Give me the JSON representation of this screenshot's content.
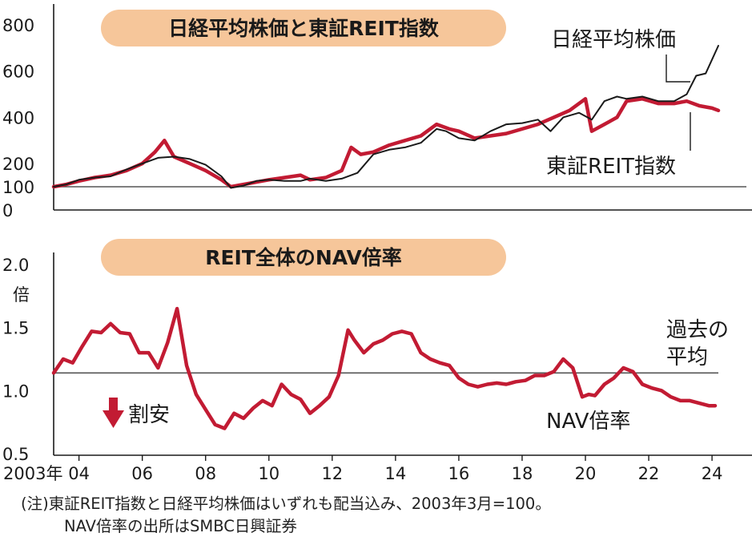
{
  "chart_data": [
    {
      "type": "line",
      "title": "日経平均株価と東証REIT指数",
      "ylim": [
        0,
        800
      ],
      "yticks": [
        "0",
        "100",
        "200",
        "400",
        "600",
        "800"
      ],
      "reference_line": 100,
      "series": [
        {
          "name": "日経平均株価",
          "color": "#1a1a1a",
          "x": [
            2003.2,
            2003.6,
            2004.0,
            2004.5,
            2005.0,
            2005.5,
            2006.0,
            2006.5,
            2007.0,
            2007.5,
            2008.0,
            2008.5,
            2008.8,
            2009.2,
            2009.6,
            2010.0,
            2010.5,
            2011.0,
            2011.3,
            2011.8,
            2012.3,
            2012.8,
            2013.3,
            2013.8,
            2014.3,
            2014.8,
            2015.3,
            2015.6,
            2016.0,
            2016.5,
            2017.0,
            2017.5,
            2018.0,
            2018.5,
            2018.9,
            2019.3,
            2019.8,
            2020.2,
            2020.6,
            2021.0,
            2021.3,
            2021.8,
            2022.3,
            2022.8,
            2023.2,
            2023.5,
            2023.8,
            2024.0,
            2024.2
          ],
          "values": [
            100,
            110,
            130,
            140,
            145,
            175,
            200,
            225,
            230,
            220,
            195,
            145,
            95,
            105,
            125,
            130,
            125,
            125,
            135,
            125,
            135,
            160,
            240,
            260,
            270,
            290,
            350,
            340,
            310,
            300,
            340,
            370,
            375,
            390,
            340,
            400,
            420,
            390,
            470,
            490,
            480,
            490,
            470,
            470,
            500,
            580,
            590,
            650,
            710
          ]
        },
        {
          "name": "東証REIT指数",
          "color": "#c21b33",
          "x": [
            2003.2,
            2003.6,
            2004.0,
            2004.5,
            2005.0,
            2005.5,
            2006.0,
            2006.4,
            2006.7,
            2007.0,
            2007.5,
            2008.0,
            2008.5,
            2008.8,
            2009.2,
            2009.6,
            2010.0,
            2010.5,
            2011.0,
            2011.3,
            2011.8,
            2012.3,
            2012.6,
            2012.9,
            2013.3,
            2013.8,
            2014.3,
            2014.8,
            2015.3,
            2015.7,
            2016.0,
            2016.5,
            2017.0,
            2017.5,
            2018.0,
            2018.5,
            2019.0,
            2019.5,
            2020.0,
            2020.2,
            2020.6,
            2021.0,
            2021.3,
            2021.8,
            2022.3,
            2022.8,
            2023.2,
            2023.6,
            2024.0,
            2024.2
          ],
          "values": [
            100,
            110,
            125,
            140,
            150,
            170,
            200,
            250,
            300,
            230,
            200,
            170,
            130,
            100,
            110,
            120,
            130,
            140,
            150,
            130,
            140,
            170,
            270,
            240,
            250,
            280,
            300,
            320,
            370,
            350,
            340,
            310,
            320,
            330,
            350,
            370,
            400,
            430,
            480,
            340,
            370,
            400,
            470,
            480,
            460,
            460,
            470,
            450,
            440,
            430
          ]
        }
      ],
      "annotations": [
        "日経平均株価",
        "東証REIT指数"
      ]
    },
    {
      "type": "line",
      "title": "REIT全体のNAV倍率",
      "ylabel": "倍",
      "ylim": [
        0.5,
        2.0
      ],
      "yticks": [
        "0.5",
        "1.0",
        "1.5",
        "2.0"
      ],
      "xlim": [
        2003.2,
        2024.2
      ],
      "xticks": [
        {
          "value": 2003.2,
          "label": "2003年"
        },
        {
          "value": 2004,
          "label": "04"
        },
        {
          "value": 2006,
          "label": "06"
        },
        {
          "value": 2008,
          "label": "08"
        },
        {
          "value": 2010,
          "label": "10"
        },
        {
          "value": 2012,
          "label": "12"
        },
        {
          "value": 2014,
          "label": "14"
        },
        {
          "value": 2016,
          "label": "16"
        },
        {
          "value": 2018,
          "label": "18"
        },
        {
          "value": 2020,
          "label": "20"
        },
        {
          "value": 2022,
          "label": "22"
        },
        {
          "value": 2024,
          "label": "24"
        }
      ],
      "average_line": 1.14,
      "series": [
        {
          "name": "NAV倍率",
          "color": "#c21b33",
          "x": [
            2003.2,
            2003.5,
            2003.8,
            2004.1,
            2004.4,
            2004.7,
            2005.0,
            2005.3,
            2005.6,
            2005.9,
            2006.2,
            2006.5,
            2006.8,
            2007.1,
            2007.4,
            2007.7,
            2008.0,
            2008.3,
            2008.6,
            2008.9,
            2009.2,
            2009.5,
            2009.8,
            2010.1,
            2010.4,
            2010.7,
            2011.0,
            2011.3,
            2011.6,
            2011.9,
            2012.2,
            2012.5,
            2012.7,
            2013.0,
            2013.3,
            2013.6,
            2013.9,
            2014.2,
            2014.5,
            2014.8,
            2015.1,
            2015.4,
            2015.7,
            2016.0,
            2016.3,
            2016.6,
            2016.9,
            2017.2,
            2017.5,
            2017.8,
            2018.1,
            2018.4,
            2018.7,
            2019.0,
            2019.3,
            2019.6,
            2019.9,
            2020.1,
            2020.3,
            2020.6,
            2020.9,
            2021.2,
            2021.5,
            2021.8,
            2022.1,
            2022.4,
            2022.7,
            2023.0,
            2023.3,
            2023.6,
            2023.9,
            2024.1
          ],
          "values": [
            1.14,
            1.25,
            1.22,
            1.35,
            1.47,
            1.46,
            1.53,
            1.46,
            1.45,
            1.3,
            1.3,
            1.18,
            1.38,
            1.65,
            1.2,
            0.97,
            0.85,
            0.73,
            0.7,
            0.82,
            0.78,
            0.86,
            0.92,
            0.88,
            1.05,
            0.97,
            0.93,
            0.82,
            0.88,
            0.95,
            1.12,
            1.48,
            1.4,
            1.3,
            1.37,
            1.4,
            1.45,
            1.47,
            1.45,
            1.3,
            1.25,
            1.22,
            1.2,
            1.1,
            1.05,
            1.03,
            1.05,
            1.06,
            1.05,
            1.07,
            1.08,
            1.12,
            1.12,
            1.15,
            1.25,
            1.18,
            0.95,
            0.97,
            0.96,
            1.05,
            1.1,
            1.18,
            1.15,
            1.05,
            1.02,
            1.0,
            0.95,
            0.92,
            0.92,
            0.9,
            0.88,
            0.88
          ]
        }
      ],
      "annotations": {
        "average": [
          "過去の",
          "平均"
        ],
        "cheap": "割安",
        "series": "NAV倍率"
      }
    }
  ],
  "notes": {
    "line1": "(注)東証REIT指数と日経平均株価はいずれも配当込み、2003年3月=100。",
    "line2": "NAV倍率の出所はSMBC日興証券"
  },
  "colors": {
    "nikkei": "#1a1a1a",
    "reit": "#c21b33",
    "title_pill": "#f6c69a",
    "arrow": "#c21b33",
    "axis": "#1a1a1a",
    "ref_line": "#555555"
  }
}
